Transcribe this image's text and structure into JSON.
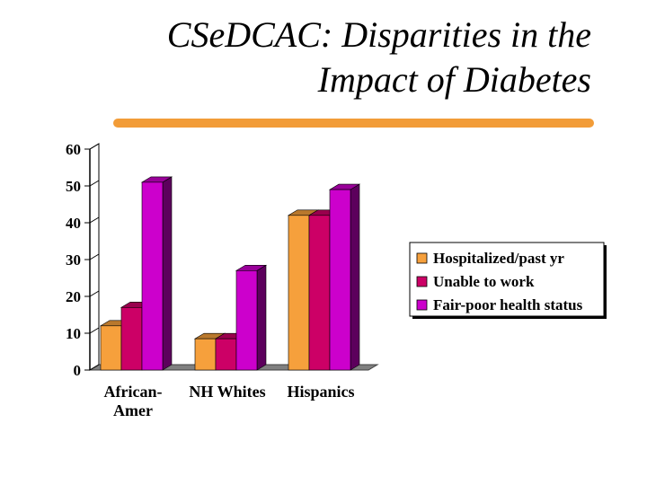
{
  "slide": {
    "title_line1": "CSeDCAC: Disparities in the",
    "title_line2": "Impact of Diabetes",
    "rule_color": "#F29C38"
  },
  "chart_data": {
    "type": "bar",
    "style": "3d-clustered",
    "categories": [
      [
        "African-",
        "Amer"
      ],
      [
        "NH Whites"
      ],
      [
        "Hispanics"
      ]
    ],
    "series": [
      {
        "name": "Hospitalized/past yr",
        "values": [
          12,
          8.5,
          42
        ],
        "color": "#F6A03C"
      },
      {
        "name": "Unable to work",
        "values": [
          17,
          8.5,
          42
        ],
        "color": "#CC0066"
      },
      {
        "name": "Fair-poor health status",
        "values": [
          51,
          27,
          49
        ],
        "color": "#CC00CC"
      }
    ],
    "yticks": [
      0,
      10,
      20,
      30,
      40,
      50,
      60
    ],
    "ylim": [
      0,
      60
    ],
    "grid": false,
    "legend_position": "right"
  }
}
